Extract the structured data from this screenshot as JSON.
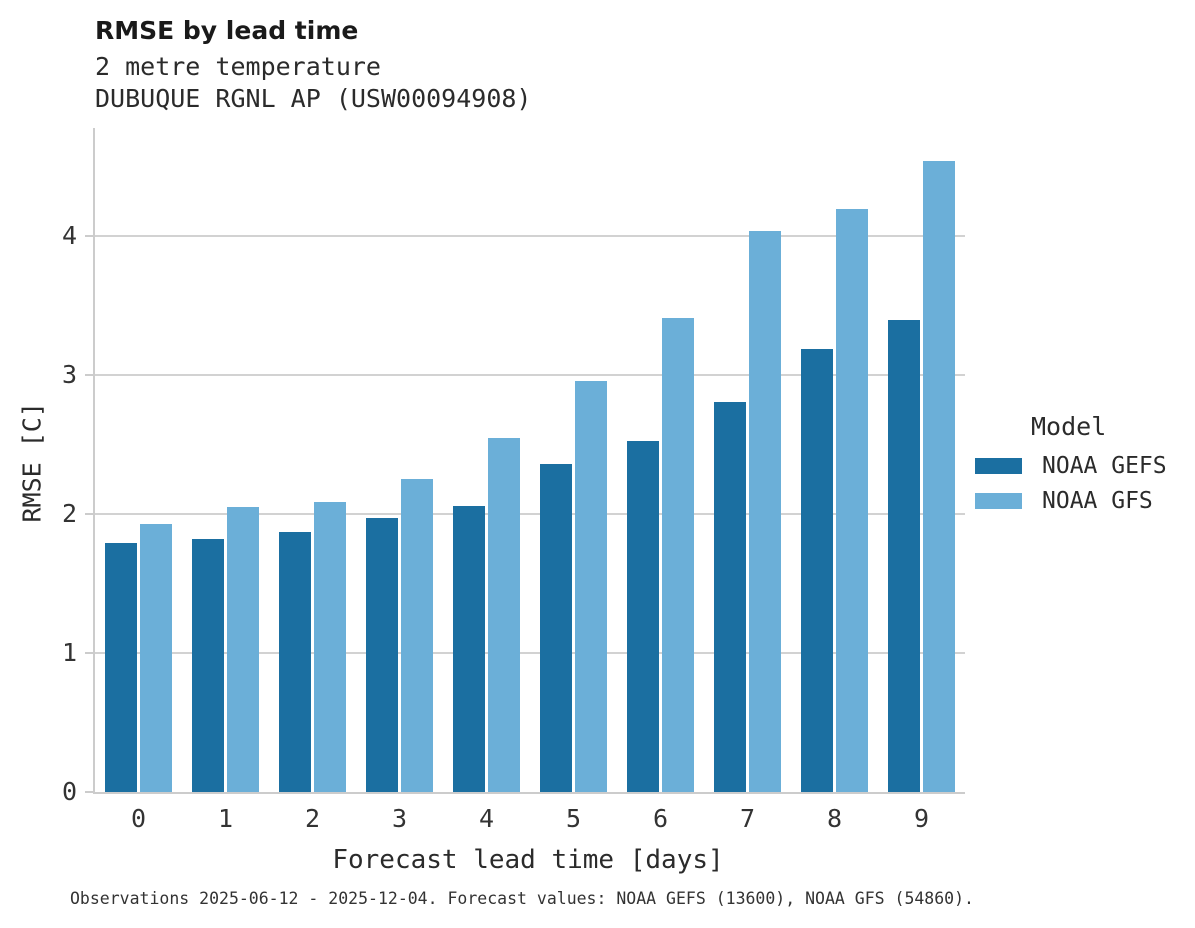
{
  "header": {
    "title": "RMSE by lead time",
    "subtitle_variable": "2 metre temperature",
    "subtitle_station": "DUBUQUE RGNL AP (USW00094908)"
  },
  "legend": {
    "title": "Model"
  },
  "footer": {
    "caption": "Observations 2025-06-12 - 2025-12-04. Forecast values: NOAA GEFS (13600), NOAA GFS (54860)."
  },
  "colors": {
    "gefs_dark_blue": "#1b6fa1",
    "gfs_light_blue": "#6bafd8",
    "gridline_gray": "#d2d2d2",
    "axis_gray": "#cccccc"
  },
  "chart_data": {
    "type": "bar",
    "title": "RMSE by lead time",
    "subtitle": "2 metre temperature",
    "station": "DUBUQUE RGNL AP (USW00094908)",
    "categories": [
      "0",
      "1",
      "2",
      "3",
      "4",
      "5",
      "6",
      "7",
      "8",
      "9"
    ],
    "series": [
      {
        "name": "NOAA GEFS",
        "color": "#1b6fa1",
        "values": [
          1.79,
          1.82,
          1.87,
          1.97,
          2.06,
          2.36,
          2.53,
          2.81,
          3.19,
          3.4
        ]
      },
      {
        "name": "NOAA GFS",
        "color": "#6bafd8",
        "values": [
          1.93,
          2.05,
          2.09,
          2.25,
          2.55,
          2.96,
          3.41,
          4.04,
          4.2,
          4.54
        ]
      }
    ],
    "xlabel": "Forecast lead time [days]",
    "ylabel": "RMSE [C]",
    "yticks": [
      0,
      1,
      2,
      3,
      4
    ],
    "ylim": [
      0,
      4.78
    ],
    "grid": "horizontal",
    "legend_title": "Model",
    "legend_position": "right"
  }
}
